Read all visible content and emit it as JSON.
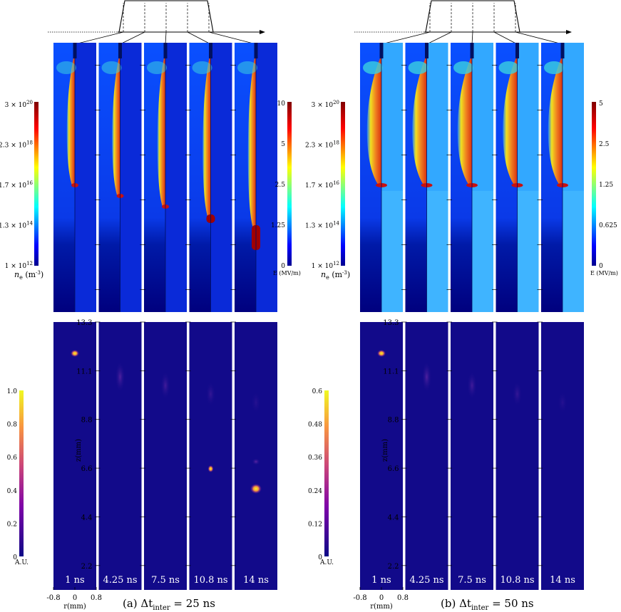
{
  "figure": {
    "panels": [
      {
        "caption_prefix": "(a) Δt",
        "caption_sub": "inter",
        "caption_suffix": " = 25 ns",
        "ne_scale": {
          "ticks": [
            "3 × 10^20",
            "2.3 × 10^18",
            "1.7 × 10^16",
            "1.3 × 10^14",
            "1 × 10^12"
          ],
          "label": "n_e (m^-3)"
        },
        "e_scale": {
          "ticks": [
            "10",
            "5",
            "2.5",
            "1.25",
            "0"
          ],
          "label": "E (MV/m)"
        },
        "au_scale": {
          "ticks": [
            "1.0",
            "0.8",
            "0.6",
            "0.4",
            "0.2",
            "0"
          ],
          "label": "A.U."
        },
        "times": [
          "1 ns",
          "4.25 ns",
          "7.5 ns",
          "10.8 ns",
          "14 ns"
        ]
      },
      {
        "caption_prefix": "(b) Δt",
        "caption_sub": "inter",
        "caption_suffix": " = 50 ns",
        "ne_scale": {
          "ticks": [
            "3 × 10^20",
            "2.3 × 10^18",
            "1.7 × 10^16",
            "1.3 × 10^14",
            "1 × 10^12"
          ],
          "label": "n_e (m^-3)"
        },
        "e_scale": {
          "ticks": [
            "5",
            "2.5",
            "1.25",
            "0.625",
            "0"
          ],
          "label": "E (MV/m)"
        },
        "au_scale": {
          "ticks": [
            "0.6",
            "0.48",
            "0.36",
            "0.24",
            "0.12",
            "0"
          ],
          "label": "A.U."
        },
        "times": [
          "1 ns",
          "4.25 ns",
          "7.5 ns",
          "10.8 ns",
          "14 ns"
        ]
      }
    ],
    "z_axis": {
      "label": "z(mm)",
      "ticks": [
        "13.3",
        "11.1",
        "8.8",
        "6.6",
        "4.4",
        "2.2"
      ]
    },
    "r_axis": {
      "label": "r(mm)",
      "ticks": [
        "-0.8",
        "0",
        "0.8"
      ]
    },
    "colors": {
      "plasma_background": "#0a2ad8",
      "plasma_dark": "#00007a",
      "emission_background": "#120a8a",
      "field_light": "#3fb4ff",
      "accent_red": "#c81010",
      "accent_yellow": "#f5e020"
    }
  }
}
